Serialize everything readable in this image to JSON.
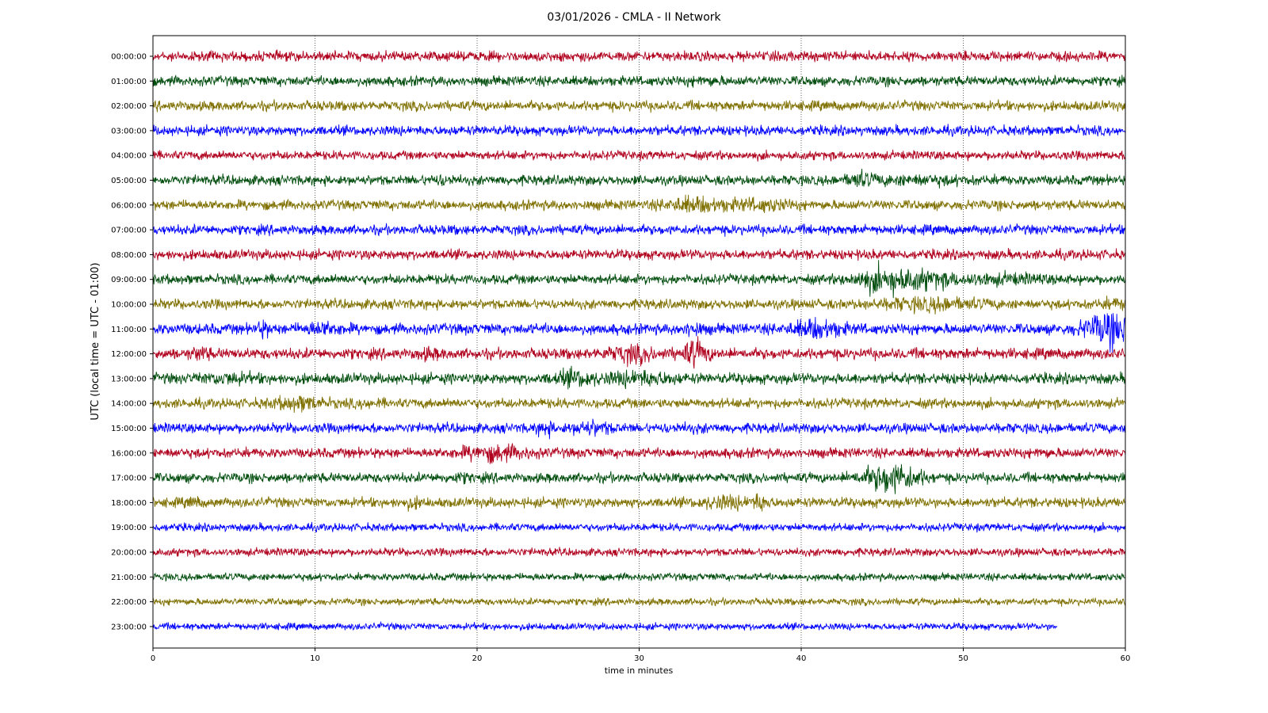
{
  "chart_data": {
    "type": "line",
    "title": "03/01/2026 - CMLA - II Network",
    "xlabel": "time in minutes",
    "ylabel": "UTC (local time = UTC - 01:00)",
    "xlim": [
      0,
      60
    ],
    "x_ticks": [
      "0",
      "10",
      "20",
      "30",
      "40",
      "50",
      "60"
    ],
    "grid": "vertical dotted at each 10 minutes",
    "colors": [
      "#b0001e",
      "#004d0d",
      "#7f7000",
      "#0000ff"
    ],
    "rows": [
      {
        "label": "00:00:00",
        "color": "#b0001e",
        "end_minute": 60,
        "amp": 1.0,
        "events": []
      },
      {
        "label": "01:00:00",
        "color": "#004d0d",
        "end_minute": 60,
        "amp": 1.0,
        "events": [
          {
            "minute": 34,
            "amp": 1.3,
            "width": 1
          }
        ]
      },
      {
        "label": "02:00:00",
        "color": "#7f7000",
        "end_minute": 60,
        "amp": 1.0,
        "events": []
      },
      {
        "label": "03:00:00",
        "color": "#0000ff",
        "end_minute": 60,
        "amp": 1.0,
        "events": []
      },
      {
        "label": "04:00:00",
        "color": "#b0001e",
        "end_minute": 60,
        "amp": 0.9,
        "events": []
      },
      {
        "label": "05:00:00",
        "color": "#004d0d",
        "end_minute": 60,
        "amp": 1.0,
        "events": [
          {
            "minute": 17.8,
            "amp": 1.4,
            "width": 0.8
          },
          {
            "minute": 43.6,
            "amp": 1.8,
            "width": 0.8
          },
          {
            "minute": 47,
            "amp": 1.4,
            "width": 3
          }
        ]
      },
      {
        "label": "06:00:00",
        "color": "#7f7000",
        "end_minute": 60,
        "amp": 1.0,
        "events": [
          {
            "minute": 33,
            "amp": 1.8,
            "width": 1.5
          },
          {
            "minute": 35.5,
            "amp": 1.4,
            "width": 2
          },
          {
            "minute": 38,
            "amp": 1.5,
            "width": 1.5
          }
        ]
      },
      {
        "label": "07:00:00",
        "color": "#0000ff",
        "end_minute": 60,
        "amp": 1.0,
        "events": []
      },
      {
        "label": "08:00:00",
        "color": "#b0001e",
        "end_minute": 60,
        "amp": 1.0,
        "events": []
      },
      {
        "label": "09:00:00",
        "color": "#004d0d",
        "end_minute": 60,
        "amp": 1.0,
        "events": [
          {
            "minute": 44.5,
            "amp": 2.2,
            "width": 1.5
          },
          {
            "minute": 47,
            "amp": 2.3,
            "width": 2
          },
          {
            "minute": 52,
            "amp": 1.5,
            "width": 3
          }
        ]
      },
      {
        "label": "10:00:00",
        "color": "#7f7000",
        "end_minute": 60,
        "amp": 1.0,
        "events": [
          {
            "minute": 48,
            "amp": 1.8,
            "width": 3
          },
          {
            "minute": 59.5,
            "amp": 1.5,
            "width": 1
          }
        ]
      },
      {
        "label": "11:00:00",
        "color": "#0000ff",
        "end_minute": 60,
        "amp": 1.1,
        "events": [
          {
            "minute": 6.8,
            "amp": 1.9,
            "width": 0.4
          },
          {
            "minute": 10.5,
            "amp": 1.7,
            "width": 1.2
          },
          {
            "minute": 33.3,
            "amp": 1.7,
            "width": 0.6
          },
          {
            "minute": 41,
            "amp": 2.2,
            "width": 1.5
          },
          {
            "minute": 59,
            "amp": 3.5,
            "width": 1.5
          }
        ]
      },
      {
        "label": "12:00:00",
        "color": "#b0001e",
        "end_minute": 60,
        "amp": 1.1,
        "events": [
          {
            "minute": 2.9,
            "amp": 1.7,
            "width": 0.6
          },
          {
            "minute": 17,
            "amp": 1.5,
            "width": 0.7
          },
          {
            "minute": 29.5,
            "amp": 2.0,
            "width": 1.5
          },
          {
            "minute": 33.4,
            "amp": 2.8,
            "width": 0.8
          }
        ]
      },
      {
        "label": "13:00:00",
        "color": "#004d0d",
        "end_minute": 60,
        "amp": 1.1,
        "events": [
          {
            "minute": 4.5,
            "amp": 1.5,
            "width": 1.5
          },
          {
            "minute": 26,
            "amp": 1.9,
            "width": 1.2
          },
          {
            "minute": 30,
            "amp": 1.8,
            "width": 2
          }
        ]
      },
      {
        "label": "14:00:00",
        "color": "#7f7000",
        "end_minute": 60,
        "amp": 1.0,
        "events": [
          {
            "minute": 9,
            "amp": 1.9,
            "width": 1.5
          },
          {
            "minute": 13.3,
            "amp": 1.3,
            "width": 0.8
          }
        ]
      },
      {
        "label": "15:00:00",
        "color": "#0000ff",
        "end_minute": 60,
        "amp": 1.0,
        "events": [
          {
            "minute": 24.2,
            "amp": 1.9,
            "width": 0.5
          },
          {
            "minute": 27,
            "amp": 1.9,
            "width": 1.2
          },
          {
            "minute": 33,
            "amp": 1.2,
            "width": 1.5
          }
        ]
      },
      {
        "label": "16:00:00",
        "color": "#b0001e",
        "end_minute": 60,
        "amp": 1.0,
        "events": [
          {
            "minute": 21,
            "amp": 2.1,
            "width": 2
          },
          {
            "minute": 54.8,
            "amp": 1.3,
            "width": 0.5
          }
        ]
      },
      {
        "label": "17:00:00",
        "color": "#004d0d",
        "end_minute": 60,
        "amp": 1.0,
        "events": [
          {
            "minute": 19,
            "amp": 1.3,
            "width": 1
          },
          {
            "minute": 44.5,
            "amp": 2.0,
            "width": 1.3
          },
          {
            "minute": 46.2,
            "amp": 2.7,
            "width": 1.3
          }
        ]
      },
      {
        "label": "18:00:00",
        "color": "#7f7000",
        "end_minute": 60,
        "amp": 1.0,
        "events": [
          {
            "minute": 2.5,
            "amp": 1.5,
            "width": 0.4
          },
          {
            "minute": 16,
            "amp": 1.5,
            "width": 0.7
          },
          {
            "minute": 35.3,
            "amp": 1.8,
            "width": 1.5
          },
          {
            "minute": 37.5,
            "amp": 2.0,
            "width": 0.5
          }
        ]
      },
      {
        "label": "19:00:00",
        "color": "#0000ff",
        "end_minute": 60,
        "amp": 0.8,
        "events": []
      },
      {
        "label": "20:00:00",
        "color": "#b0001e",
        "end_minute": 60,
        "amp": 0.8,
        "events": []
      },
      {
        "label": "21:00:00",
        "color": "#004d0d",
        "end_minute": 60,
        "amp": 0.75,
        "events": []
      },
      {
        "label": "22:00:00",
        "color": "#7f7000",
        "end_minute": 60,
        "amp": 0.7,
        "events": []
      },
      {
        "label": "23:00:00",
        "color": "#0000ff",
        "end_minute": 55.8,
        "amp": 0.7,
        "events": []
      }
    ]
  }
}
